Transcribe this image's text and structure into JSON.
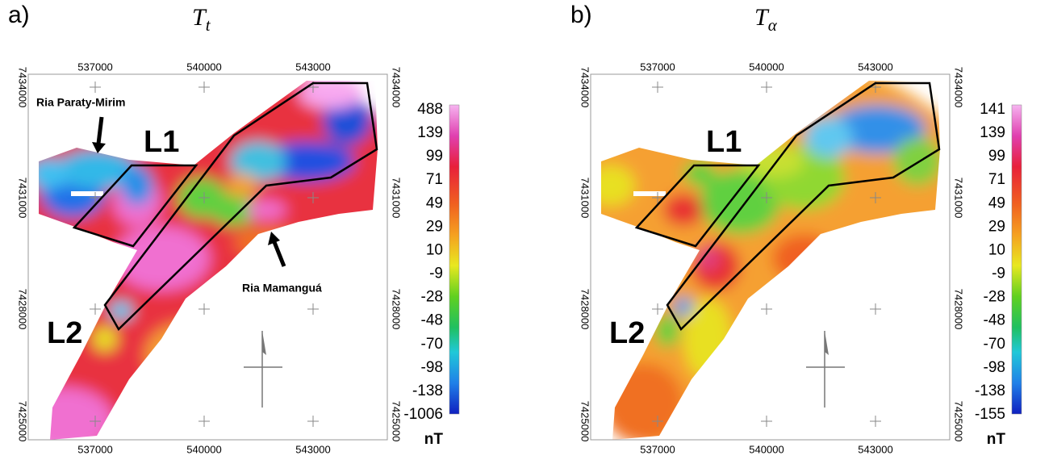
{
  "panels": [
    {
      "label": "a)",
      "title": {
        "symbol": "T",
        "subscript": "t"
      },
      "x_ticks": [
        537000,
        540000,
        543000
      ],
      "y_ticks": [
        7434000,
        7431000,
        7428000,
        7425000
      ],
      "colorbar": {
        "labels": [
          488,
          139,
          99,
          71,
          49,
          29,
          10,
          -9,
          -28,
          -48,
          -70,
          -98,
          -138,
          -1006
        ],
        "unit": "nT"
      },
      "annotations": [
        "Ria Paraty-Mirim",
        "L1",
        "Ria Mamanguá",
        "L2"
      ]
    },
    {
      "label": "b)",
      "title": {
        "symbol": "T",
        "subscript": "α"
      },
      "x_ticks": [
        537000,
        540000,
        543000
      ],
      "y_ticks": [
        7434000,
        7431000,
        7428000,
        7425000
      ],
      "colorbar": {
        "labels": [
          141,
          139,
          99,
          71,
          49,
          29,
          10,
          -9,
          -28,
          -48,
          -70,
          -98,
          -138,
          -155
        ],
        "unit": "nT"
      },
      "annotations": [
        "L1",
        "L2"
      ]
    }
  ]
}
